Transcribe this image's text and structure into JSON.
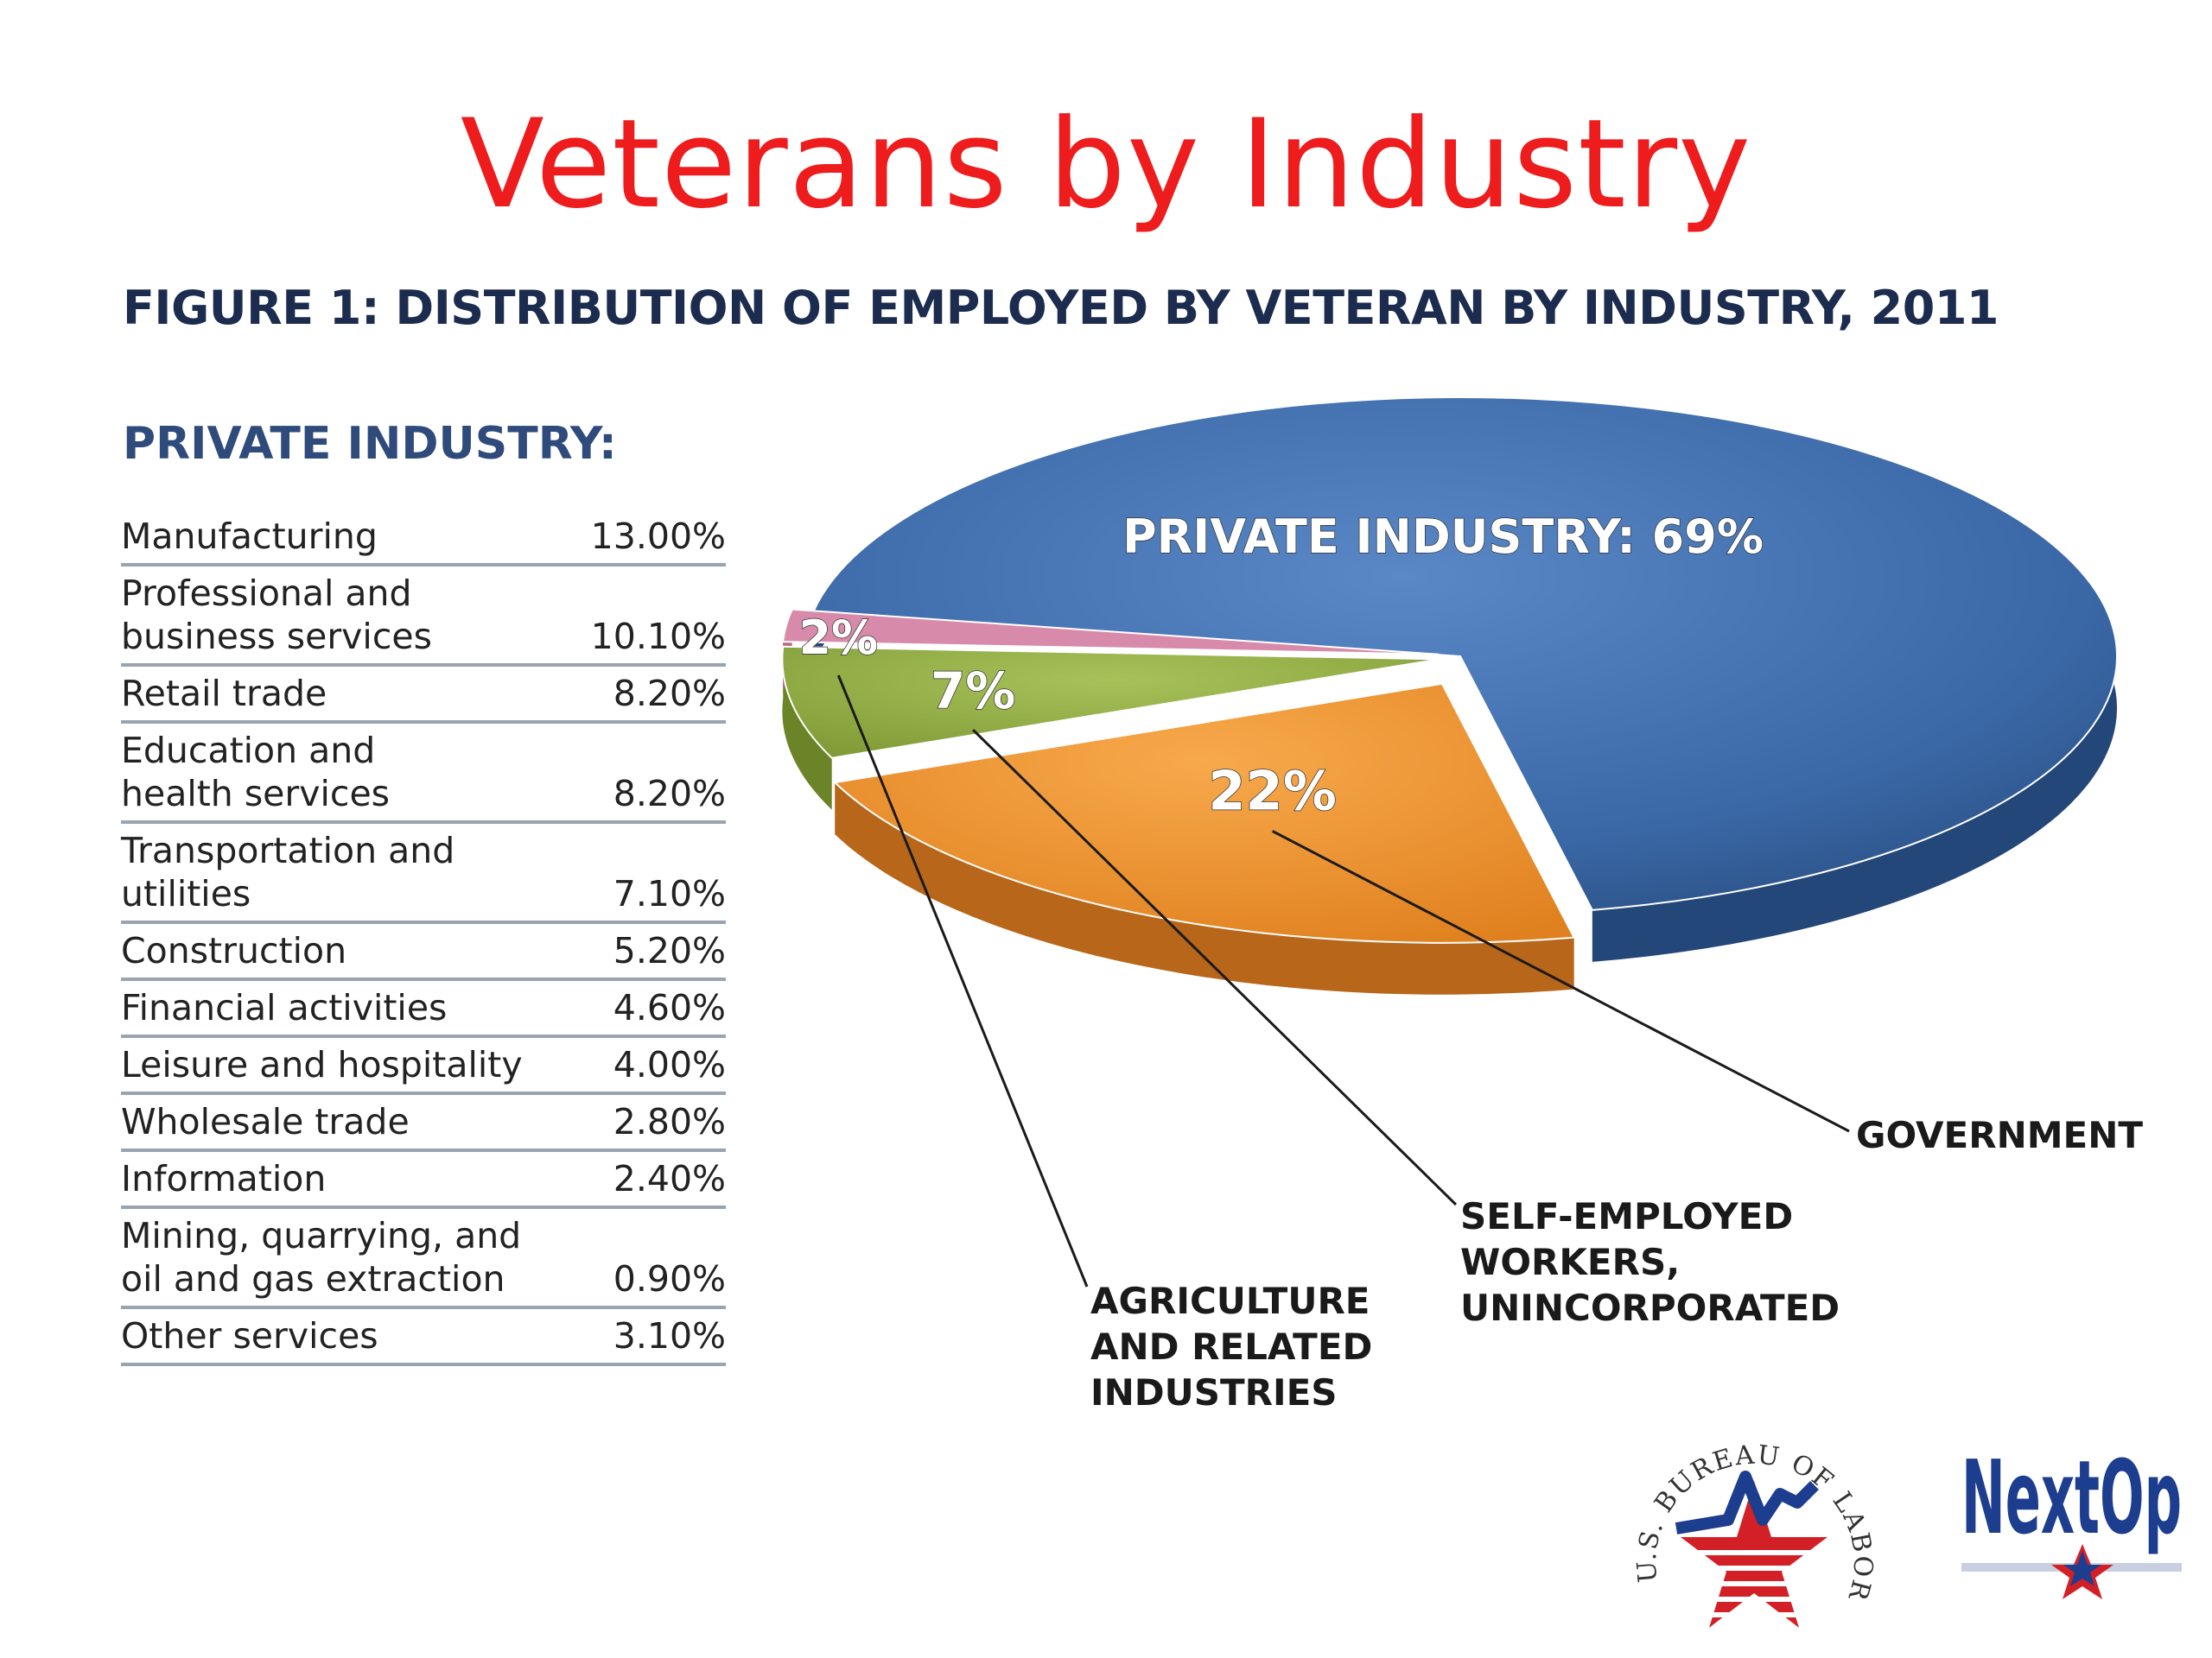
{
  "slide": {
    "title": "Veterans by Industry"
  },
  "figure": {
    "title": "FIGURE 1: DISTRIBUTION OF EMPLOYED BY VETERAN BY INDUSTRY, 2011"
  },
  "table": {
    "heading": "PRIVATE INDUSTRY:",
    "rows": [
      {
        "label": "Manufacturing",
        "value": "13.00%"
      },
      {
        "label": "Professional and\nbusiness services",
        "value": "10.10%"
      },
      {
        "label": "Retail trade",
        "value": "8.20%"
      },
      {
        "label": "Education and\nhealth services",
        "value": "8.20%"
      },
      {
        "label": "Transportation and\nutilities",
        "value": "7.10%"
      },
      {
        "label": "Construction",
        "value": "5.20%"
      },
      {
        "label": "Financial activities",
        "value": "4.60%"
      },
      {
        "label": "Leisure and hospitality",
        "value": "4.00%"
      },
      {
        "label": "Wholesale trade",
        "value": "2.80%"
      },
      {
        "label": "Information",
        "value": "2.40%"
      },
      {
        "label": "Mining, quarrying, and\noil and gas extraction",
        "value": "0.90%"
      },
      {
        "label": "Other services",
        "value": "3.10%"
      }
    ]
  },
  "chart_data": {
    "type": "pie",
    "title": "FIGURE 1: DISTRIBUTION OF EMPLOYED BY VETERAN BY INDUSTRY, 2011",
    "slices": [
      {
        "name": "PRIVATE INDUSTRY",
        "value": 69,
        "label": "PRIVATE INDUSTRY: 69%",
        "color": "#3a68a6"
      },
      {
        "name": "GOVERNMENT",
        "value": 22,
        "label": "22%",
        "color": "#f0912c"
      },
      {
        "name": "SELF-EMPLOYED WORKERS, UNINCORPORATED",
        "value": 7,
        "label": "7%",
        "color": "#93b043"
      },
      {
        "name": "AGRICULTURE AND RELATED INDUSTRIES",
        "value": 2,
        "label": "2%",
        "color": "#d88aaa"
      }
    ],
    "callouts": {
      "government": "GOVERNMENT",
      "self_employed": "SELF-EMPLOYED\nWORKERS,\nUNINCORPORATED",
      "agriculture": "AGRICULTURE\nAND RELATED\nINDUSTRIES"
    }
  },
  "logos": {
    "bls": "U.S. BUREAU OF LABOR STATISTICS",
    "nextop": "NextOp"
  },
  "colors": {
    "title": "#ee1c1c",
    "figure_title": "#1c2c4e",
    "heading": "#2f4b7c"
  }
}
